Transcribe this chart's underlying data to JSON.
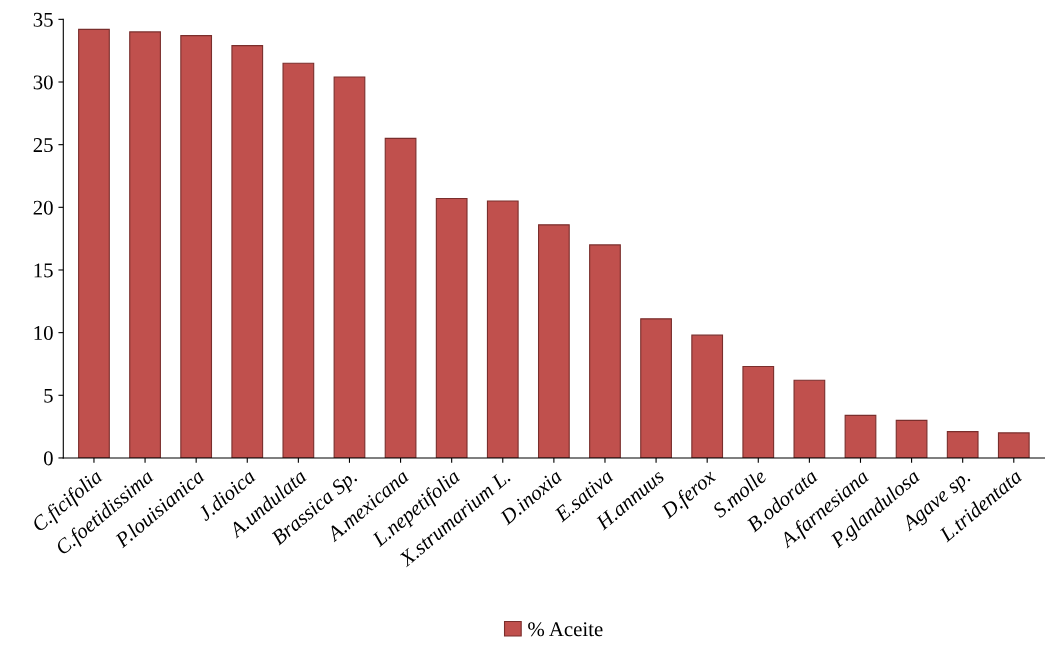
{
  "chart_data": {
    "type": "bar",
    "categories": [
      "C.ficifolia",
      "C.foetidissima",
      "P.louisianica",
      "J.dioica",
      "A.undulata",
      "Brassica Sp.",
      "A.mexicana",
      "L.nepetifolia",
      "X.strumarium L.",
      "D.inoxia",
      "E.sativa",
      "H.annuus",
      "D.ferox",
      "S.molle",
      "B.odorata",
      "A.farnesiana",
      "P.glandulosa",
      "Agave sp.",
      "L.tridentata"
    ],
    "series": [
      {
        "name": "% Aceite",
        "color": "#c0504d",
        "values": [
          34.2,
          34.0,
          33.7,
          32.9,
          31.5,
          30.4,
          25.5,
          20.7,
          20.5,
          18.6,
          17.0,
          11.1,
          9.8,
          7.3,
          6.2,
          3.4,
          3.0,
          2.1,
          2.0
        ]
      }
    ],
    "ylim": [
      0,
      35
    ],
    "yticks": [
      0,
      5,
      10,
      15,
      20,
      25,
      30,
      35
    ],
    "grid": false,
    "legend": "bottom"
  }
}
